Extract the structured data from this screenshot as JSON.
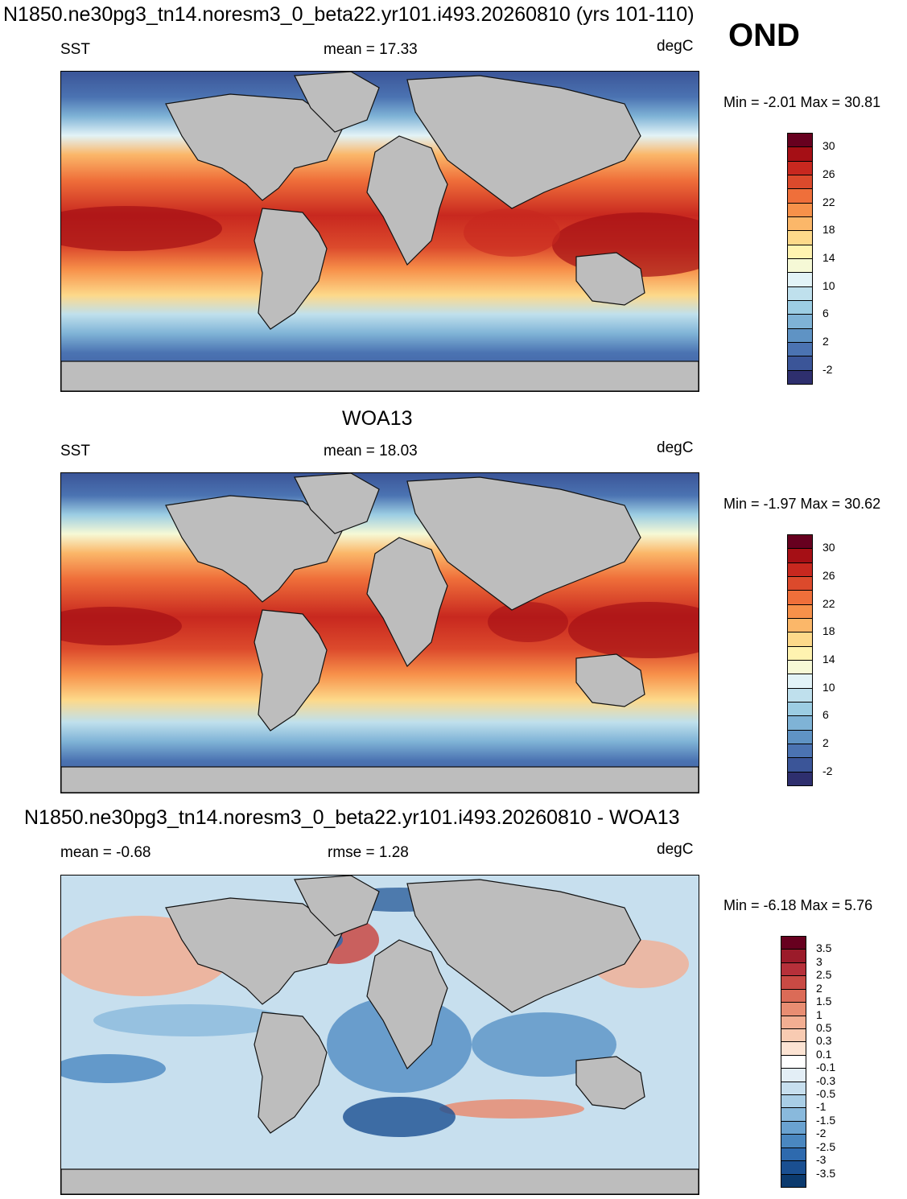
{
  "header": {
    "title": "N1850.ne30pg3_tn14.noresm3_0_beta22.yr101.i493.20260810 (yrs 101-110)",
    "season": "OND"
  },
  "panels": [
    {
      "id": "model",
      "heading": "",
      "left_label": "SST",
      "center_label": "mean =  17.33",
      "units": "degC",
      "minmax": "Min =  -2.01 Max =  30.81",
      "colorbar_ticks": [
        "30",
        "26",
        "22",
        "18",
        "14",
        "10",
        "6",
        "2",
        "-2"
      ],
      "colorbar_colors": [
        "#67001f",
        "#a50f15",
        "#c8281f",
        "#dc4a2c",
        "#ef6f3a",
        "#f7914a",
        "#fbb769",
        "#fdd98a",
        "#fff3b0",
        "#f6f9d6",
        "#e2f3f7",
        "#bfe0ed",
        "#9ccde3",
        "#7fb3d6",
        "#5f93c4",
        "#4b73b2",
        "#3b5598",
        "#2e2f6e"
      ]
    },
    {
      "id": "obs",
      "heading": "WOA13",
      "left_label": "SST",
      "center_label": "mean =  18.03",
      "units": "degC",
      "minmax": "Min =  -1.97 Max =  30.62",
      "colorbar_ticks": [
        "30",
        "26",
        "22",
        "18",
        "14",
        "10",
        "6",
        "2",
        "-2"
      ],
      "colorbar_colors": [
        "#67001f",
        "#a50f15",
        "#c8281f",
        "#dc4a2c",
        "#ef6f3a",
        "#f7914a",
        "#fbb769",
        "#fdd98a",
        "#fff3b0",
        "#f6f9d6",
        "#e2f3f7",
        "#bfe0ed",
        "#9ccde3",
        "#7fb3d6",
        "#5f93c4",
        "#4b73b2",
        "#3b5598",
        "#2e2f6e"
      ]
    },
    {
      "id": "diff",
      "heading": "N1850.ne30pg3_tn14.noresm3_0_beta22.yr101.i493.20260810 - WOA13",
      "left_label": "mean =  -0.68",
      "center_label": "rmse =   1.28",
      "units": "degC",
      "minmax": "Min =  -6.18 Max =   5.76",
      "colorbar_ticks": [
        "3.5",
        "3",
        "2.5",
        "2",
        "1.5",
        "1",
        "0.5",
        "0.3",
        "0.1",
        "-0.1",
        "-0.3",
        "-0.5",
        "-1",
        "-1.5",
        "-2",
        "-2.5",
        "-3",
        "-3.5"
      ],
      "colorbar_colors": [
        "#67001f",
        "#9b1b2a",
        "#b6303a",
        "#c94a44",
        "#db6b57",
        "#e88d72",
        "#f2ae92",
        "#f8cbb2",
        "#fce3d3",
        "#ffffff",
        "#e3eef6",
        "#c7dfee",
        "#a9cee6",
        "#89b9dc",
        "#6aa2d0",
        "#4a87c0",
        "#2e6aae",
        "#1a4f91",
        "#0b3a6e"
      ]
    }
  ]
}
